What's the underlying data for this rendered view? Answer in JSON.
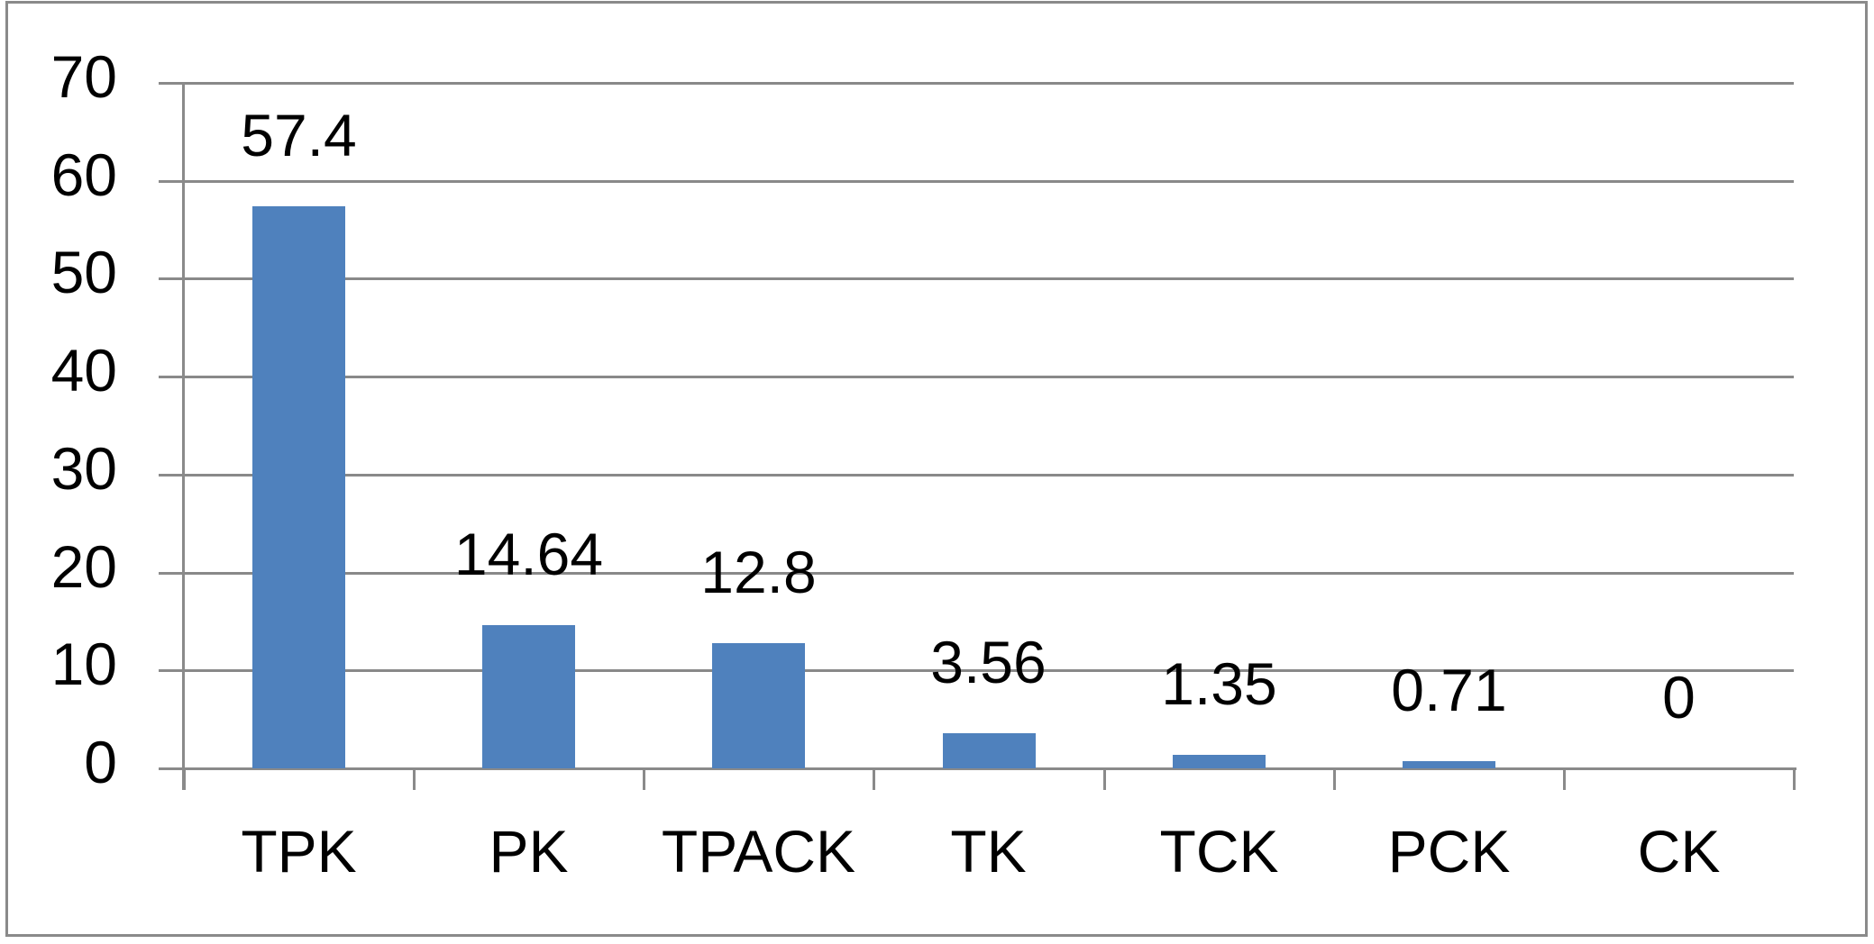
{
  "chart_data": {
    "type": "bar",
    "title": "",
    "categories": [
      "TPK",
      "PK",
      "TPACK",
      "TK",
      "TCK",
      "PCK",
      "CK"
    ],
    "values": [
      57.4,
      14.64,
      12.8,
      3.56,
      1.35,
      0.71,
      0
    ],
    "data_labels": [
      "57.4",
      "14.64",
      "12.8",
      "3.56",
      "1.35",
      "0.71",
      "0"
    ],
    "yticks": [
      0,
      10,
      20,
      30,
      40,
      50,
      60,
      70
    ],
    "ytick_labels": [
      "0",
      "10",
      "20",
      "30",
      "40",
      "50",
      "60",
      "70"
    ],
    "ylim": [
      0,
      70
    ],
    "xlabel": "",
    "ylabel": "",
    "grid": true,
    "legend": "none"
  },
  "colors": {
    "bar": "#4F81BD",
    "gridline": "#898989",
    "axis": "#8A8A8A",
    "border": "#8A8A8A",
    "text": "#000000",
    "background": "#FFFFFF"
  }
}
